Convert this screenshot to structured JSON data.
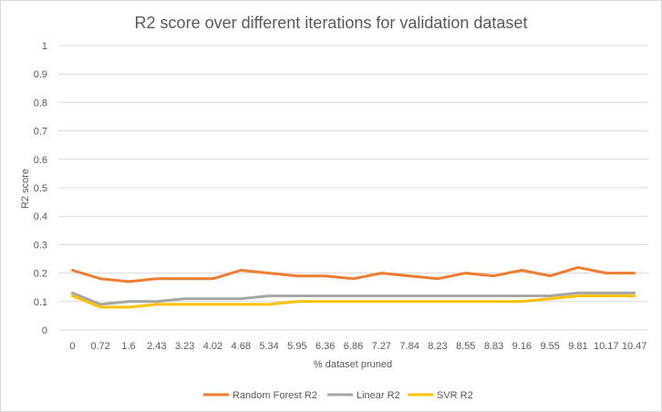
{
  "chart_data": {
    "type": "line",
    "title": "R2 score over different iterations for validation dataset",
    "xlabel": "% dataset pruned",
    "ylabel": "R2 score",
    "ylim": [
      0,
      1
    ],
    "yticks": [
      "0",
      "0.1",
      "0.2",
      "0.3",
      "0.4",
      "0.5",
      "0.6",
      "0.7",
      "0.8",
      "0.9",
      "1"
    ],
    "grid": true,
    "legend": "bottom",
    "categories": [
      "0",
      "0.72",
      "1.6",
      "2.43",
      "3.23",
      "4.02",
      "4.68",
      "5.34",
      "5.95",
      "6.36",
      "6.86",
      "7.27",
      "7.84",
      "8.23",
      "8.55",
      "8.83",
      "9.16",
      "9.55",
      "9.81",
      "10.17",
      "10.47"
    ],
    "series": [
      {
        "name": "Random Forest R2",
        "color": "#ed7d31",
        "values": [
          0.21,
          0.18,
          0.17,
          0.18,
          0.18,
          0.18,
          0.21,
          0.2,
          0.19,
          0.19,
          0.18,
          0.2,
          0.19,
          0.18,
          0.2,
          0.19,
          0.21,
          0.19,
          0.22,
          0.2,
          0.2
        ]
      },
      {
        "name": "Linear R2",
        "color": "#a5a5a5",
        "values": [
          0.13,
          0.09,
          0.1,
          0.1,
          0.11,
          0.11,
          0.11,
          0.12,
          0.12,
          0.12,
          0.12,
          0.12,
          0.12,
          0.12,
          0.12,
          0.12,
          0.12,
          0.12,
          0.13,
          0.13,
          0.13
        ]
      },
      {
        "name": "SVR R2",
        "color": "#ffc000",
        "values": [
          0.12,
          0.08,
          0.08,
          0.09,
          0.09,
          0.09,
          0.09,
          0.09,
          0.1,
          0.1,
          0.1,
          0.1,
          0.1,
          0.1,
          0.1,
          0.1,
          0.1,
          0.11,
          0.12,
          0.12,
          0.12
        ]
      }
    ]
  }
}
